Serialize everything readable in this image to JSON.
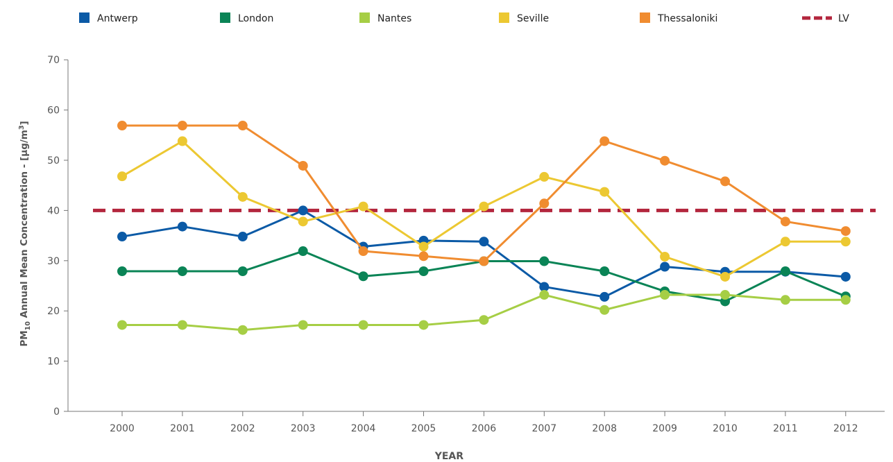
{
  "chart_data": {
    "type": "line",
    "xlabel": "YEAR",
    "ylabel_prefix": "PM",
    "ylabel_sub": "10",
    "ylabel_rest": " Annual Mean Concentration - [µg/m",
    "ylabel_sup": "3",
    "ylabel_end": "]",
    "ylim": [
      0,
      70
    ],
    "yticks": [
      "0",
      "10",
      "20",
      "30",
      "40",
      "50",
      "60",
      "70"
    ],
    "categories": [
      "2000",
      "2001",
      "2002",
      "2003",
      "2004",
      "2005",
      "2006",
      "2007",
      "2008",
      "2009",
      "2010",
      "2011",
      "2012"
    ],
    "grid": false,
    "legend_position": "top",
    "series": [
      {
        "name": "Antwerp",
        "color": "#0b5aa6",
        "values": [
          34.8,
          36.8,
          34.8,
          40.0,
          32.8,
          34.0,
          33.8,
          24.8,
          22.8,
          28.8,
          27.8,
          27.8,
          26.8
        ]
      },
      {
        "name": "London",
        "color": "#0a8456",
        "values": [
          27.9,
          27.9,
          27.9,
          31.9,
          26.9,
          27.9,
          29.9,
          29.9,
          27.9,
          23.9,
          21.9,
          27.9,
          22.9
        ]
      },
      {
        "name": "Nantes",
        "color": "#a6ce45",
        "values": [
          17.2,
          17.2,
          16.2,
          17.2,
          17.2,
          17.2,
          18.2,
          23.2,
          20.2,
          23.2,
          23.2,
          22.2,
          22.2
        ]
      },
      {
        "name": "Seville",
        "color": "#ecc832",
        "values": [
          46.8,
          53.8,
          42.7,
          37.8,
          40.8,
          32.8,
          40.8,
          46.7,
          43.7,
          30.8,
          26.8,
          33.8,
          33.8
        ]
      },
      {
        "name": "Thessaloniki",
        "color": "#f08c30",
        "values": [
          56.9,
          56.9,
          56.9,
          48.9,
          31.9,
          30.9,
          29.9,
          41.4,
          53.8,
          49.9,
          45.8,
          37.8,
          35.9
        ]
      }
    ],
    "limit": {
      "name": "LV",
      "value": 40,
      "color": "#b3263d"
    }
  }
}
